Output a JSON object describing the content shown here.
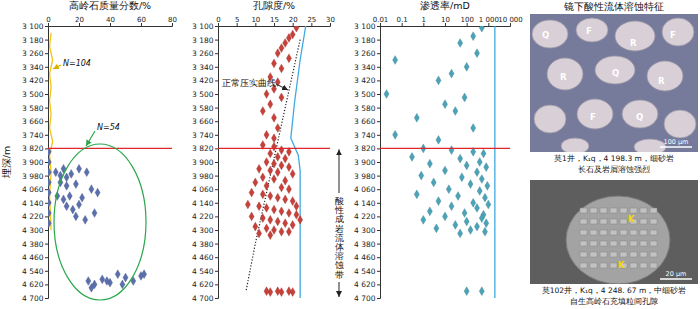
{
  "chart_data": [
    {
      "type": "scatter",
      "xlabel": "高岭石质量分数/%",
      "ylabel": "埋深/m",
      "xlim": [
        0,
        80
      ],
      "xticks": [
        0,
        20,
        40,
        60,
        80
      ],
      "ylim": [
        4700,
        3100
      ],
      "yticks": [
        {
          "value": 3100,
          "label": "3 100"
        },
        {
          "value": 3180,
          "label": "3 180"
        },
        {
          "value": 3260,
          "label": "3 260"
        },
        {
          "value": 3340,
          "label": "3 340"
        },
        {
          "value": 3420,
          "label": "3 420"
        },
        {
          "value": 3500,
          "label": "3 500"
        },
        {
          "value": 3580,
          "label": "3 580"
        },
        {
          "value": 3660,
          "label": "3 660"
        },
        {
          "value": 3740,
          "label": "3 740"
        },
        {
          "value": 3820,
          "label": "3 820"
        },
        {
          "value": 3900,
          "label": "3 900"
        },
        {
          "value": 3980,
          "label": "3 980"
        },
        {
          "value": 4060,
          "label": "4 060"
        },
        {
          "value": 4140,
          "label": "4 140"
        },
        {
          "value": 4220,
          "label": "4 220"
        },
        {
          "value": 4300,
          "label": "4 300"
        },
        {
          "value": 4380,
          "label": "4 380"
        },
        {
          "value": 4460,
          "label": "4 460"
        },
        {
          "value": 4540,
          "label": "4 540"
        },
        {
          "value": 4620,
          "label": "4 620"
        },
        {
          "value": 4700,
          "label": "4 700"
        }
      ],
      "hline": 3820,
      "annotations": [
        "N=104",
        "N=54"
      ],
      "series": [
        {
          "type": "line",
          "color": "#f0c419",
          "line_style": "solid",
          "x": [
            2,
            1,
            3,
            1,
            2,
            1,
            2,
            1,
            3,
            1,
            2,
            1,
            2
          ],
          "y": [
            3140,
            3220,
            3300,
            3380,
            3460,
            3540,
            3620,
            3700,
            3780,
            3860,
            3960,
            4100,
            4300
          ]
        },
        {
          "type": "scatter",
          "color": "#5b6fae",
          "marker": "diamond",
          "x": [
            0.5,
            0.5,
            0.5,
            0.5,
            0.5,
            0.5,
            0.5,
            0.5,
            5,
            8,
            10,
            12,
            15,
            20,
            25,
            8,
            12,
            18,
            28,
            32,
            6,
            10,
            14,
            22,
            12,
            16,
            20,
            30,
            18,
            24,
            26,
            30,
            35,
            40,
            45,
            50,
            55,
            60,
            62,
            48,
            38,
            28
          ],
          "y": [
            3840,
            3900,
            3960,
            4020,
            4080,
            4140,
            4200,
            4260,
            3960,
            3980,
            3940,
            3990,
            3970,
            3940,
            3960,
            4020,
            4040,
            4030,
            4060,
            4080,
            4100,
            4120,
            4100,
            4110,
            4160,
            4180,
            4150,
            4200,
            4220,
            4240,
            4600,
            4620,
            4590,
            4610,
            4560,
            4580,
            4600,
            4570,
            4560,
            4620,
            4600,
            4640
          ]
        }
      ]
    },
    {
      "type": "scatter",
      "xlabel": "孔隙度/%",
      "xlim": [
        0,
        30
      ],
      "xticks": [
        0,
        5,
        10,
        15,
        20,
        25,
        30
      ],
      "ylim": [
        4700,
        3100
      ],
      "yticks": [
        {
          "value": 3100,
          "label": "3 100"
        },
        {
          "value": 3180,
          "label": "3 180"
        },
        {
          "value": 3260,
          "label": "3 260"
        },
        {
          "value": 3340,
          "label": "3 340"
        },
        {
          "value": 3420,
          "label": "3 420"
        },
        {
          "value": 3500,
          "label": "3 500"
        },
        {
          "value": 3580,
          "label": "3 580"
        },
        {
          "value": 3660,
          "label": "3 660"
        },
        {
          "value": 3740,
          "label": "3 740"
        },
        {
          "value": 3820,
          "label": "3 820"
        },
        {
          "value": 3900,
          "label": "3 900"
        },
        {
          "value": 3980,
          "label": "3 980"
        },
        {
          "value": 4060,
          "label": "4 060"
        },
        {
          "value": 4140,
          "label": "4 140"
        },
        {
          "value": 4220,
          "label": "4 220"
        },
        {
          "value": 4300,
          "label": "4 300"
        },
        {
          "value": 4380,
          "label": "4 380"
        },
        {
          "value": 4460,
          "label": "4 460"
        },
        {
          "value": 4540,
          "label": "4 540"
        },
        {
          "value": 4620,
          "label": "4 620"
        },
        {
          "value": 4700,
          "label": "4 700"
        }
      ],
      "hline": 3820,
      "annotations": [
        "正常压实曲线",
        "酸性成岩流体溶蚀带"
      ],
      "series": [
        {
          "type": "line",
          "color": "#222222",
          "line_style": "dotted",
          "x": [
            22,
            19,
            16,
            13,
            10,
            7.5
          ],
          "y": [
            3180,
            3480,
            3780,
            4080,
            4380,
            4660
          ]
        },
        {
          "type": "line",
          "color": "#3fa9e0",
          "line_style": "solid",
          "x": [
            23.5,
            22,
            20.5,
            19.5,
            21.5,
            22,
            22,
            22
          ],
          "y": [
            3100,
            3300,
            3550,
            3760,
            3860,
            3950,
            4300,
            4700
          ]
        },
        {
          "type": "scatter",
          "color": "#c8403a",
          "marker": "diamond",
          "x": [
            21,
            20,
            19,
            18,
            17,
            16,
            19,
            15,
            17,
            14,
            16,
            15,
            13,
            17,
            14,
            12,
            15,
            16,
            13,
            15,
            12,
            15,
            17,
            19,
            14,
            16,
            18,
            13,
            15,
            17,
            19,
            11,
            14,
            16,
            20,
            12,
            15,
            18,
            10,
            13,
            17,
            19,
            9,
            12,
            14,
            16,
            18,
            20,
            8,
            11,
            13,
            15,
            17,
            19,
            21,
            9,
            12,
            14,
            16,
            18,
            20,
            10,
            13,
            15,
            17,
            11,
            14,
            19,
            22,
            21,
            13,
            14,
            16,
            17,
            19,
            20
          ],
          "y": [
            3110,
            3150,
            3170,
            3200,
            3230,
            3260,
            3290,
            3320,
            3350,
            3400,
            3430,
            3470,
            3500,
            3520,
            3560,
            3600,
            3640,
            3700,
            3740,
            3760,
            3800,
            3810,
            3830,
            3840,
            3850,
            3870,
            3880,
            3900,
            3910,
            3920,
            3930,
            3940,
            3950,
            3960,
            3970,
            3990,
            4000,
            4010,
            4020,
            4040,
            4050,
            4060,
            4080,
            4090,
            4100,
            4110,
            4120,
            4130,
            4150,
            4160,
            4170,
            4180,
            4190,
            4200,
            4210,
            4220,
            4230,
            4240,
            4250,
            4260,
            4270,
            4280,
            4290,
            4300,
            4310,
            4320,
            4330,
            4310,
            4240,
            4160,
            4660,
            4665,
            4660,
            4665,
            4660,
            4665
          ]
        }
      ]
    },
    {
      "type": "scatter",
      "xlabel": "渗透率/mD",
      "log": "x",
      "xlim": [
        0.01,
        10000
      ],
      "xticks": [
        0.01,
        0.1,
        1,
        10,
        100,
        {
          "value": 1000,
          "label": "1 000"
        },
        {
          "value": 10000,
          "label": "10 000"
        }
      ],
      "ylim": [
        4700,
        3100
      ],
      "yticks": [
        {
          "value": 3100,
          "label": "3 100"
        },
        {
          "value": 3180,
          "label": "3 180"
        },
        {
          "value": 3260,
          "label": "3 260"
        },
        {
          "value": 3340,
          "label": "3 340"
        },
        {
          "value": 3420,
          "label": "3 420"
        },
        {
          "value": 3500,
          "label": "3 500"
        },
        {
          "value": 3580,
          "label": "3 580"
        },
        {
          "value": 3660,
          "label": "3 660"
        },
        {
          "value": 3740,
          "label": "3 740"
        },
        {
          "value": 3820,
          "label": "3 820"
        },
        {
          "value": 3900,
          "label": "3 900"
        },
        {
          "value": 3980,
          "label": "3 980"
        },
        {
          "value": 4060,
          "label": "4 060"
        },
        {
          "value": 4140,
          "label": "4 140"
        },
        {
          "value": 4220,
          "label": "4 220"
        },
        {
          "value": 4300,
          "label": "4 300"
        },
        {
          "value": 4380,
          "label": "4 380"
        },
        {
          "value": 4460,
          "label": "4 460"
        },
        {
          "value": 4540,
          "label": "4 540"
        },
        {
          "value": 4620,
          "label": "4 620"
        },
        {
          "value": 4700,
          "label": "4 700"
        }
      ],
      "hline": 3820,
      "series": [
        {
          "type": "line",
          "color": "#3fa9e0",
          "line_style": "solid",
          "x": [
            2000,
            2000
          ],
          "y": [
            3100,
            4700
          ]
        },
        {
          "type": "scatter",
          "color": "#4ba3b8",
          "marker": "diamond",
          "x": [
            500,
            200,
            50,
            300,
            0.05,
            100,
            20,
            5,
            0.02,
            80,
            10,
            30,
            0.5,
            200,
            0.05,
            5,
            1,
            20,
            200,
            600,
            0.3,
            50,
            400,
            2,
            100,
            800,
            10,
            300,
            0.8,
            60,
            500,
            3,
            150,
            900,
            15,
            400,
            0.5,
            40,
            700,
            5,
            200,
            1000,
            20,
            300,
            2,
            80,
            600,
            10,
            500,
            1,
            100,
            800,
            30,
            300,
            4,
            150,
            700,
            50,
            100,
            500
          ],
          "y": [
            3110,
            3160,
            3200,
            3260,
            3300,
            3340,
            3380,
            3420,
            3500,
            3520,
            3560,
            3600,
            3640,
            3700,
            3740,
            3770,
            3820,
            3830,
            3840,
            3850,
            3870,
            3880,
            3900,
            3910,
            3920,
            3930,
            3950,
            3960,
            3980,
            3990,
            4000,
            4020,
            4030,
            4040,
            4060,
            4070,
            4090,
            4100,
            4110,
            4130,
            4140,
            4150,
            4160,
            4170,
            4190,
            4200,
            4210,
            4220,
            4230,
            4240,
            4250,
            4260,
            4270,
            4280,
            4290,
            4300,
            4310,
            4320,
            4660,
            4660
          ]
        }
      ]
    }
  ],
  "photos": {
    "title": "镜下酸性流体溶蚀特征",
    "items": [
      {
        "caption": [
          "莫1井，K₁q，4 198.3 m，细砂岩",
          "长石及岩屑溶蚀强烈"
        ],
        "scale_bar": "100 μm",
        "labels": [
          "Q",
          "F",
          "R",
          "F",
          "R",
          "Q",
          "R",
          "F",
          "Q"
        ]
      },
      {
        "caption": [
          "莫102井，K₁q，4 248. 67 m，中细砂岩",
          "自生高岭石充填粒间孔隙"
        ],
        "scale_bar": "20 μm",
        "labels": [
          "K",
          "K"
        ]
      }
    ]
  }
}
